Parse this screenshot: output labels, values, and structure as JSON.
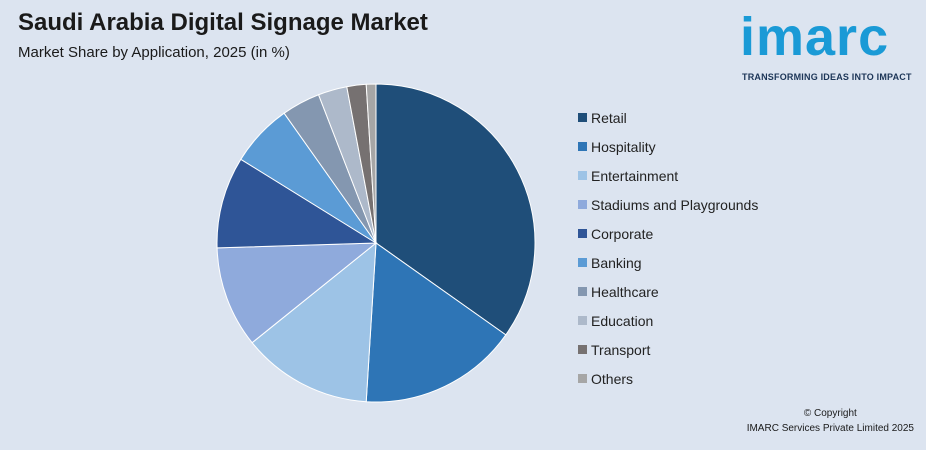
{
  "chart_data": {
    "type": "pie",
    "title": "Saudi Arabia Digital Signage Market",
    "subtitle": "Market Share by Application, 2025 (in %)",
    "categories": [
      "Retail",
      "Hospitality",
      "Entertainment",
      "Stadiums and Playgrounds",
      "Corporate",
      "Banking",
      "Healthcare",
      "Education",
      "Transport",
      "Others"
    ],
    "values": [
      35.5,
      16.5,
      13.5,
      10.5,
      9.5,
      6.5,
      4.0,
      3.0,
      2.0,
      1.0
    ],
    "colors": [
      "#1f4e79",
      "#2e75b6",
      "#9dc3e6",
      "#8faadc",
      "#2f5597",
      "#5b9bd5",
      "#8497b0",
      "#adb9ca",
      "#767171",
      "#a6a6a6"
    ],
    "legend_position": "right"
  },
  "brand": {
    "name": "imarc",
    "tagline": "TRANSFORMING IDEAS INTO IMPACT",
    "color": "#1a9ad6"
  },
  "footer": {
    "copyright": "© Copyright",
    "owner": "IMARC Services Private Limited 2025"
  }
}
